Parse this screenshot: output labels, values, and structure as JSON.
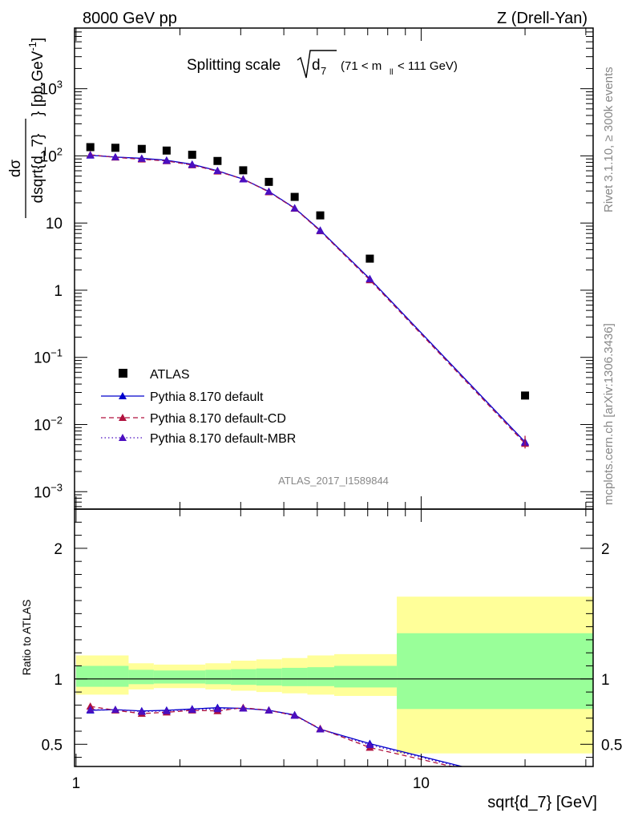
{
  "header": {
    "left": "8000 GeV pp",
    "right": "Z (Drell-Yan)"
  },
  "side": {
    "rivet": "Rivet 3.1.10, ≥ 300k events",
    "mcplots": "mcplots.cern.ch [arXiv:1306.3436]"
  },
  "chart_data": {
    "type": "scatter",
    "title": "Splitting scale √d_7 (71 < m_ll < 111 GeV)",
    "title_main": "Splitting scale",
    "title_sym": "d",
    "title_sub": "7",
    "title_paren_a": "(71 < m",
    "title_paren_sub": "ll",
    "title_paren_b": " < 111 GeV)",
    "analysis_label": "ATLAS_2017_I1589844",
    "xlabel": "sqrt{d_7} [GeV]",
    "ylabel_num": "dσ",
    "ylabel_den": "dsqrt{d_7}",
    "ylabel_units_a": "[pb,GeV",
    "ylabel_units_sup": "-1",
    "ylabel_units_b": "]",
    "ratio_ylabel": "Ratio to ATLAS",
    "xscale": "log",
    "yscale": "log",
    "xlim": [
      0.99,
      31.5
    ],
    "ylim": [
      0.00055,
      8000
    ],
    "ratio_ylim": [
      0.33,
      2.3
    ],
    "x_ticks": [
      {
        "v": 1,
        "label": "1"
      },
      {
        "v": 10,
        "label": "10"
      }
    ],
    "y_ticks": [
      {
        "v": 0.001,
        "base": "10",
        "exp": "−3"
      },
      {
        "v": 0.01,
        "base": "10",
        "exp": "−2"
      },
      {
        "v": 0.1,
        "base": "10",
        "exp": "−1"
      },
      {
        "v": 1,
        "base": "1",
        "exp": ""
      },
      {
        "v": 10,
        "base": "10",
        "exp": ""
      },
      {
        "v": 100,
        "base": "10",
        "exp": "2"
      },
      {
        "v": 1000,
        "base": "10",
        "exp": "3"
      }
    ],
    "ratio_ticks": [
      {
        "v": 0.5,
        "label": "0.5"
      },
      {
        "v": 1,
        "label": "1"
      },
      {
        "v": 2,
        "label": "2"
      }
    ],
    "legend": {
      "position": "bottom-left",
      "entries": [
        "ATLAS",
        "Pythia 8.170 default",
        "Pythia 8.170 default-CD",
        "Pythia 8.170 default-MBR"
      ]
    },
    "bins_x": [
      1.1,
      1.3,
      1.55,
      1.83,
      2.17,
      2.57,
      3.05,
      3.62,
      4.3,
      5.1,
      7.1,
      20
    ],
    "bin_edges": [
      1.0,
      1.2,
      1.42,
      1.68,
      2.0,
      2.37,
      2.81,
      3.33,
      3.95,
      4.68,
      5.6,
      8.5,
      31.5
    ],
    "ratio_band_green": [
      [
        0.94,
        1.1
      ],
      [
        0.94,
        1.1
      ],
      [
        0.96,
        1.07
      ],
      [
        0.965,
        1.065
      ],
      [
        0.965,
        1.065
      ],
      [
        0.96,
        1.07
      ],
      [
        0.955,
        1.075
      ],
      [
        0.95,
        1.08
      ],
      [
        0.945,
        1.085
      ],
      [
        0.945,
        1.09
      ],
      [
        0.935,
        1.1
      ],
      [
        0.77,
        1.35
      ]
    ],
    "ratio_band_yellow": [
      [
        0.88,
        1.18
      ],
      [
        0.88,
        1.18
      ],
      [
        0.92,
        1.12
      ],
      [
        0.93,
        1.11
      ],
      [
        0.93,
        1.11
      ],
      [
        0.92,
        1.12
      ],
      [
        0.91,
        1.14
      ],
      [
        0.9,
        1.15
      ],
      [
        0.89,
        1.16
      ],
      [
        0.88,
        1.18
      ],
      [
        0.87,
        1.19
      ],
      [
        0.43,
        1.63
      ]
    ],
    "series": [
      {
        "name": "ATLAS",
        "color": "#000000",
        "marker": "square",
        "values": [
          135,
          132,
          127,
          120,
          104,
          84,
          61,
          41,
          24.5,
          13,
          2.95,
          0.027
        ]
      },
      {
        "name": "Pythia 8.170 default",
        "color": "#0000cc",
        "line": "solid",
        "marker": "triangle",
        "values": [
          102,
          96,
          92,
          86,
          75,
          60,
          45,
          29.5,
          16.7,
          7.8,
          1.48,
          0.0055
        ],
        "ratio": [
          0.76,
          0.765,
          0.755,
          0.76,
          0.77,
          0.78,
          0.775,
          0.76,
          0.725,
          0.615,
          0.505,
          0.21
        ]
      },
      {
        "name": "Pythia 8.170 default-CD",
        "color": "#b0123e",
        "line": "dashed",
        "marker": "triangle",
        "values": [
          104,
          95,
          89,
          84,
          73,
          59,
          45,
          29,
          16.5,
          7.6,
          1.42,
          0.0052
        ],
        "ratio": [
          0.79,
          0.76,
          0.735,
          0.745,
          0.76,
          0.755,
          0.78,
          0.76,
          0.72,
          0.62,
          0.475,
          0.2
        ]
      },
      {
        "name": "Pythia 8.170 default-MBR",
        "color": "#4b0ec0",
        "line": "dotted",
        "marker": "triangle",
        "values": [
          103,
          96,
          91,
          85,
          74,
          60,
          45,
          29.5,
          16.6,
          7.7,
          1.46,
          0.0054
        ],
        "ratio": [
          0.765,
          0.765,
          0.75,
          0.755,
          0.765,
          0.77,
          0.775,
          0.76,
          0.72,
          0.615,
          0.495,
          0.205
        ]
      }
    ]
  }
}
